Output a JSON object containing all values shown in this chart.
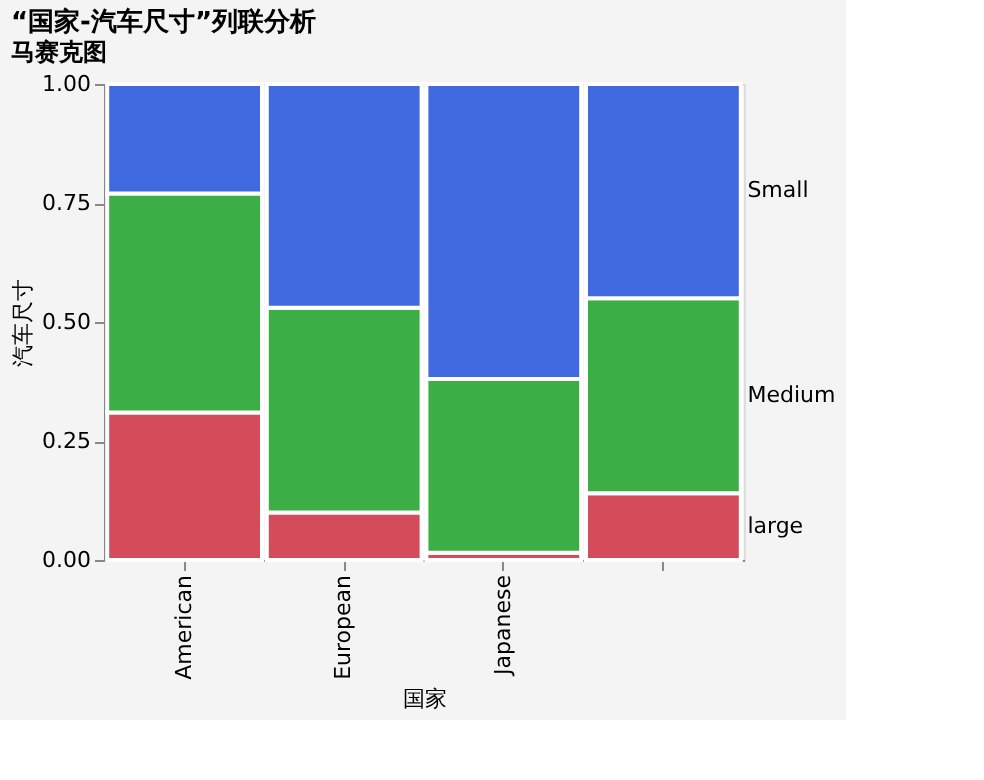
{
  "chart_data": {
    "type": "bar",
    "title": "“国家-汽车尺寸”列联分析",
    "subtitle": "马赛克图",
    "xlabel": "国家",
    "ylabel": "汽车尺寸",
    "categories": [
      "American",
      "European",
      "Japanese",
      null
    ],
    "stacked": true,
    "series": [
      {
        "name": "large",
        "color": "#d44b5a",
        "values": [
          0.31,
          0.1,
          0.015,
          0.14
        ]
      },
      {
        "name": "Medium",
        "color": "#3cae46",
        "values": [
          0.46,
          0.43,
          0.365,
          0.41
        ]
      },
      {
        "name": "Small",
        "color": "#4169e0",
        "values": [
          0.23,
          0.47,
          0.62,
          0.45
        ]
      }
    ],
    "ylim": [
      0,
      1
    ],
    "yticks": [
      {
        "value": 0,
        "label": "0.00"
      },
      {
        "value": 0.25,
        "label": "0.25"
      },
      {
        "value": 0.5,
        "label": "0.50"
      },
      {
        "value": 0.75,
        "label": "0.75"
      },
      {
        "value": 1,
        "label": "1.00"
      }
    ],
    "grid": false,
    "legend": false
  }
}
